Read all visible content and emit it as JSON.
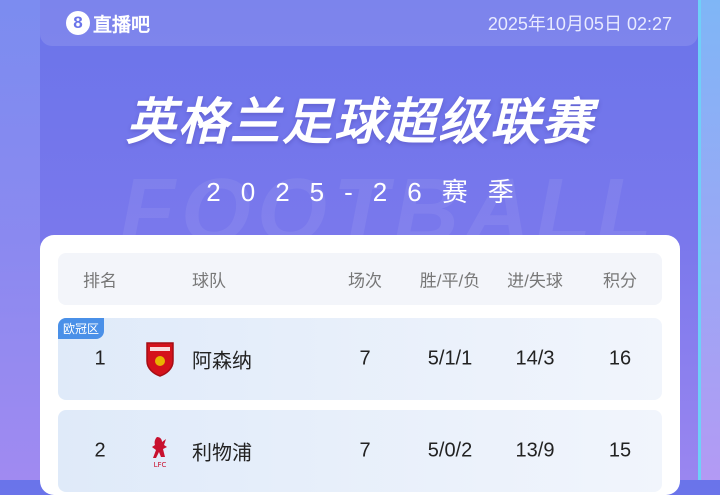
{
  "header": {
    "logo_text": "直播吧",
    "logo_mark": "8",
    "datetime": "2025年10月05日 02:27"
  },
  "title": "英格兰足球超级联赛",
  "season": "2025-26赛季",
  "table": {
    "columns": [
      "排名",
      "球队",
      "场次",
      "胜/平/负",
      "进/失球",
      "积分"
    ],
    "rows": [
      {
        "zone": "欧冠区",
        "rank": "1",
        "team": "阿森纳",
        "crest": "arsenal-crest",
        "played": "7",
        "wdl": "5/1/1",
        "goals": "14/3",
        "points": "16"
      },
      {
        "zone": "",
        "rank": "2",
        "team": "利物浦",
        "crest": "liverpool-crest",
        "played": "7",
        "wdl": "5/0/2",
        "goals": "13/9",
        "points": "15"
      }
    ]
  },
  "colors": {
    "accent": "#4a90e8",
    "background": "#6a74ea"
  }
}
